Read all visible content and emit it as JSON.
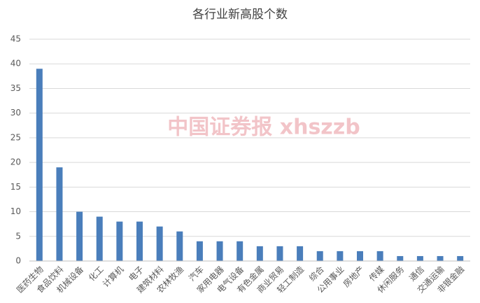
{
  "chart_data": {
    "type": "bar",
    "title": "各行业新高股个数",
    "watermark": "中国证券报 xhszzb",
    "categories": [
      "医药生物",
      "食品饮料",
      "机械设备",
      "化工",
      "计算机",
      "电子",
      "建筑材料",
      "农林牧渔",
      "汽车",
      "家用电器",
      "电气设备",
      "有色金属",
      "商业贸易",
      "轻工制造",
      "综合",
      "公用事业",
      "房地产",
      "传媒",
      "休闲服务",
      "通信",
      "交通运输",
      "非银金融"
    ],
    "values": [
      39,
      19,
      10,
      9,
      8,
      8,
      7,
      6,
      4,
      4,
      4,
      3,
      3,
      3,
      2,
      2,
      2,
      2,
      1,
      1,
      1,
      1
    ],
    "color": "#4a7ebb",
    "ylim": [
      0,
      45
    ],
    "yticks": [
      0,
      5,
      10,
      15,
      20,
      25,
      30,
      35,
      40,
      45
    ],
    "grid": true
  }
}
